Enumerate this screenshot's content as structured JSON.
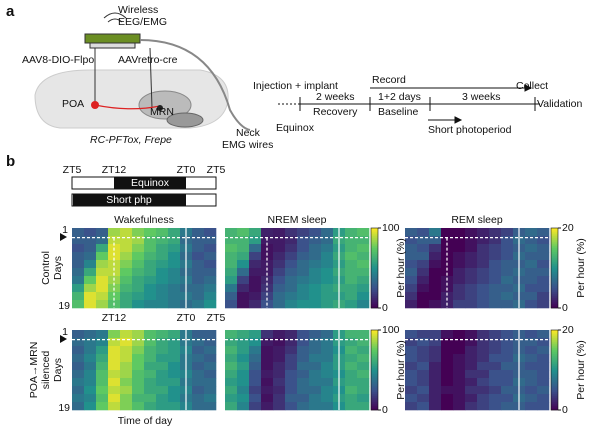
{
  "panel_a": {
    "label": "a",
    "schematic": {
      "device": [
        "Wireless",
        "EEG/EMG"
      ],
      "virus_left": "AAV8-DIO-Flpo",
      "virus_right": "AAVretro-cre",
      "poa": "POA",
      "mrn": "MRN",
      "mouse_line": "RC-PFTox, Frepe",
      "wires": [
        "Neck",
        "EMG wires"
      ]
    },
    "timeline": {
      "injection": "Injection + implant",
      "recovery_time": "2 weeks",
      "recovery": "Recovery",
      "equinox": "Equinox",
      "record": "Record",
      "baseline_time": "1+2 days",
      "baseline": "Baseline",
      "short_time": "3 weeks",
      "short": "Short photoperiod",
      "collect": "Collect",
      "validation": "Validation"
    }
  },
  "panel_b": {
    "label": "b",
    "zt_labels": [
      "ZT5",
      "ZT12",
      "ZT0",
      "ZT5"
    ],
    "bars": [
      "Equinox",
      "Short php"
    ],
    "x_label": "Time of day",
    "day_label": "Days",
    "day_ticks": [
      "1",
      "19"
    ],
    "colormap": "viridis",
    "columns": [
      {
        "title": "Wakefulness"
      },
      {
        "title": "NREM sleep",
        "colorbar": {
          "ticks": [
            0,
            100
          ],
          "label": "Per hour (%)"
        }
      },
      {
        "title": "REM sleep",
        "colorbar": {
          "ticks": [
            0,
            20
          ],
          "label": "Per hour (%)"
        }
      }
    ],
    "groups": [
      {
        "label": [
          "Control"
        ],
        "maps": [
          [
            [
              30,
              25,
              30,
              85,
              90,
              80,
              75,
              70,
              60,
              40,
              30,
              25
            ],
            [
              30,
              30,
              35,
              90,
              90,
              85,
              70,
              65,
              60,
              35,
              30,
              30
            ],
            [
              25,
              30,
              60,
              95,
              90,
              80,
              70,
              60,
              55,
              40,
              30,
              25
            ],
            [
              30,
              35,
              75,
              95,
              85,
              75,
              65,
              60,
              50,
              35,
              25,
              30
            ],
            [
              30,
              45,
              85,
              90,
              80,
              70,
              60,
              55,
              50,
              40,
              30,
              25
            ],
            [
              35,
              60,
              90,
              90,
              75,
              65,
              60,
              50,
              45,
              35,
              30,
              30
            ],
            [
              40,
              75,
              95,
              85,
              70,
              60,
              55,
              50,
              45,
              40,
              30,
              35
            ],
            [
              55,
              85,
              95,
              80,
              65,
              60,
              50,
              45,
              40,
              35,
              35,
              40
            ],
            [
              65,
              95,
              90,
              75,
              60,
              55,
              50,
              45,
              40,
              40,
              35,
              45
            ],
            [
              70,
              95,
              85,
              70,
              60,
              50,
              45,
              45,
              40,
              35,
              40,
              50
            ]
          ],
          [
            [
              65,
              70,
              60,
              10,
              8,
              15,
              20,
              25,
              35,
              55,
              65,
              70
            ],
            [
              65,
              65,
              55,
              8,
              8,
              12,
              25,
              30,
              35,
              60,
              65,
              65
            ],
            [
              70,
              65,
              35,
              5,
              8,
              15,
              25,
              35,
              40,
              55,
              65,
              70
            ],
            [
              65,
              60,
              20,
              5,
              12,
              20,
              30,
              35,
              45,
              60,
              70,
              65
            ],
            [
              65,
              50,
              12,
              8,
              15,
              25,
              35,
              40,
              45,
              55,
              65,
              70
            ],
            [
              60,
              35,
              8,
              8,
              20,
              30,
              35,
              45,
              50,
              60,
              65,
              65
            ],
            [
              55,
              20,
              5,
              12,
              25,
              35,
              40,
              45,
              50,
              55,
              65,
              60
            ],
            [
              40,
              12,
              5,
              15,
              30,
              35,
              45,
              50,
              55,
              60,
              60,
              55
            ],
            [
              30,
              5,
              8,
              20,
              35,
              40,
              45,
              50,
              55,
              55,
              60,
              50
            ],
            [
              25,
              5,
              12,
              25,
              35,
              45,
              50,
              50,
              55,
              60,
              55,
              45
            ]
          ],
          [
            [
              6,
              5,
              8,
              0,
              0,
              1,
              2,
              3,
              4,
              6,
              7,
              6
            ],
            [
              5,
              6,
              6,
              0,
              0,
              1,
              2,
              3,
              5,
              7,
              6,
              5
            ],
            [
              6,
              5,
              3,
              0,
              0,
              1,
              3,
              4,
              5,
              6,
              7,
              6
            ],
            [
              6,
              6,
              2,
              0,
              1,
              2,
              3,
              4,
              5,
              7,
              6,
              6
            ],
            [
              5,
              4,
              1,
              0,
              1,
              2,
              3,
              5,
              6,
              6,
              7,
              5
            ],
            [
              6,
              3,
              0,
              0,
              2,
              3,
              4,
              5,
              6,
              7,
              6,
              6
            ],
            [
              5,
              2,
              0,
              1,
              2,
              3,
              4,
              5,
              7,
              6,
              6,
              5
            ],
            [
              4,
              1,
              0,
              1,
              3,
              4,
              5,
              6,
              6,
              7,
              5,
              5
            ],
            [
              3,
              0,
              0,
              2,
              3,
              4,
              5,
              6,
              7,
              6,
              6,
              4
            ],
            [
              2,
              0,
              1,
              2,
              4,
              4,
              5,
              6,
              6,
              7,
              5,
              4
            ]
          ]
        ]
      },
      {
        "label": [
          "POA→MRN",
          "silenced"
        ],
        "maps": [
          [
            [
              30,
              35,
              40,
              80,
              90,
              85,
              70,
              65,
              60,
              40,
              30,
              30
            ],
            [
              35,
              40,
              45,
              90,
              95,
              85,
              70,
              60,
              55,
              40,
              35,
              30
            ],
            [
              30,
              40,
              55,
              95,
              90,
              80,
              65,
              60,
              55,
              45,
              30,
              35
            ],
            [
              35,
              45,
              60,
              95,
              90,
              75,
              65,
              55,
              55,
              40,
              35,
              30
            ],
            [
              30,
              40,
              65,
              95,
              85,
              75,
              60,
              60,
              50,
              40,
              30,
              35
            ],
            [
              35,
              45,
              70,
              90,
              85,
              70,
              65,
              55,
              50,
              45,
              35,
              30
            ],
            [
              40,
              45,
              70,
              95,
              80,
              70,
              60,
              55,
              55,
              40,
              35,
              35
            ],
            [
              35,
              50,
              75,
              90,
              85,
              70,
              60,
              60,
              50,
              45,
              30,
              35
            ],
            [
              40,
              45,
              70,
              95,
              80,
              65,
              65,
              55,
              50,
              40,
              35,
              40
            ],
            [
              35,
              50,
              75,
              90,
              80,
              70,
              60,
              55,
              55,
              45,
              35,
              35
            ]
          ],
          [
            [
              65,
              60,
              55,
              15,
              8,
              12,
              25,
              30,
              35,
              55,
              65,
              65
            ],
            [
              60,
              55,
              50,
              8,
              5,
              12,
              25,
              35,
              40,
              55,
              60,
              65
            ],
            [
              65,
              55,
              40,
              5,
              8,
              15,
              30,
              35,
              40,
              50,
              65,
              60
            ],
            [
              60,
              50,
              35,
              5,
              8,
              20,
              30,
              40,
              40,
              55,
              60,
              65
            ],
            [
              65,
              55,
              30,
              5,
              12,
              20,
              35,
              35,
              45,
              55,
              65,
              60
            ],
            [
              60,
              50,
              25,
              8,
              12,
              25,
              30,
              40,
              45,
              50,
              60,
              65
            ],
            [
              55,
              50,
              25,
              5,
              15,
              25,
              35,
              40,
              40,
              55,
              60,
              60
            ],
            [
              60,
              45,
              20,
              8,
              12,
              25,
              35,
              35,
              45,
              50,
              65,
              60
            ],
            [
              55,
              50,
              25,
              5,
              15,
              30,
              30,
              40,
              45,
              55,
              60,
              55
            ],
            [
              60,
              45,
              20,
              8,
              15,
              25,
              35,
              40,
              40,
              50,
              60,
              60
            ]
          ],
          [
            [
              5,
              4,
              4,
              1,
              0,
              1,
              3,
              4,
              5,
              6,
              5,
              6
            ],
            [
              4,
              5,
              4,
              0,
              0,
              1,
              3,
              4,
              5,
              6,
              6,
              5
            ],
            [
              5,
              4,
              3,
              0,
              0,
              2,
              3,
              4,
              5,
              6,
              5,
              6
            ],
            [
              5,
              4,
              3,
              0,
              1,
              2,
              3,
              5,
              5,
              7,
              6,
              5
            ],
            [
              4,
              5,
              2,
              0,
              1,
              2,
              4,
              4,
              6,
              6,
              5,
              5
            ],
            [
              5,
              4,
              2,
              0,
              1,
              3,
              3,
              5,
              5,
              6,
              6,
              5
            ],
            [
              5,
              4,
              2,
              0,
              1,
              2,
              4,
              5,
              5,
              7,
              6,
              5
            ],
            [
              4,
              5,
              2,
              1,
              1,
              3,
              3,
              4,
              6,
              6,
              5,
              6
            ],
            [
              5,
              4,
              2,
              0,
              1,
              2,
              4,
              5,
              5,
              7,
              6,
              5
            ],
            [
              4,
              5,
              2,
              0,
              1,
              3,
              4,
              5,
              6,
              6,
              5,
              5
            ]
          ]
        ]
      }
    ]
  }
}
